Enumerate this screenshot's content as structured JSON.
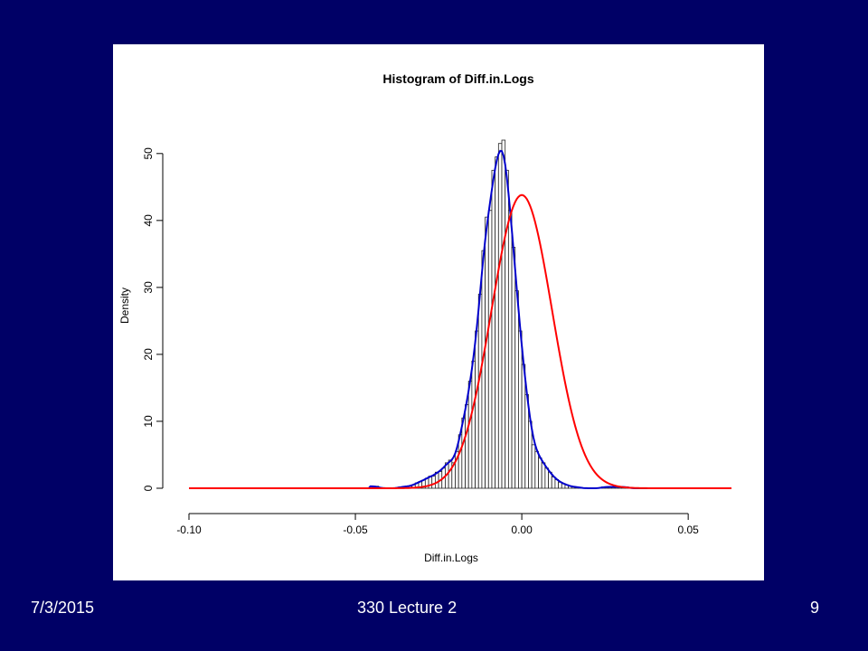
{
  "slide": {
    "background": "#000066",
    "footer_date": "7/3/2015",
    "footer_center": "330 Lecture 2",
    "footer_page": "9"
  },
  "chart_data": {
    "type": "bar",
    "title": "Histogram of Diff.in.Logs",
    "xlabel": "Diff.in.Logs",
    "ylabel": "Density",
    "xlim": [
      -0.1,
      0.063
    ],
    "ylim": [
      0,
      52
    ],
    "x_ticks": [
      -0.1,
      -0.05,
      0.0,
      0.05
    ],
    "x_tick_labels": [
      "-0.10",
      "-0.05",
      "0.00",
      "0.05"
    ],
    "y_ticks": [
      0,
      10,
      20,
      30,
      40,
      50
    ],
    "y_tick_labels": [
      "0",
      "10",
      "20",
      "30",
      "40",
      "50"
    ],
    "histogram": {
      "bin_width": 0.001,
      "bin_edges": [
        -0.045,
        -0.044,
        -0.043,
        -0.042,
        -0.041,
        -0.04,
        -0.039,
        -0.038,
        -0.037,
        -0.036,
        -0.035,
        -0.034,
        -0.033,
        -0.032,
        -0.031,
        -0.03,
        -0.029,
        -0.028,
        -0.027,
        -0.026,
        -0.025,
        -0.024,
        -0.023,
        -0.022,
        -0.021,
        -0.02,
        -0.019,
        -0.018,
        -0.017,
        -0.016,
        -0.015,
        -0.014,
        -0.013,
        -0.012,
        -0.011,
        -0.01,
        -0.009,
        -0.008,
        -0.007,
        -0.006,
        -0.005,
        -0.004,
        -0.003,
        -0.002,
        -0.001,
        0.0,
        0.001,
        0.002,
        0.003,
        0.004,
        0.005,
        0.006,
        0.007,
        0.008,
        0.009,
        0.01,
        0.011,
        0.012,
        0.013,
        0.014,
        0.015,
        0.016,
        0.017,
        0.018,
        0.019,
        0.02,
        0.021,
        0.022,
        0.023,
        0.024,
        0.025,
        0.026,
        0.027,
        0.028,
        0.029,
        0.03,
        0.031,
        0.032,
        0.033,
        0.034,
        0.035,
        0.036,
        0.037,
        0.038,
        0.039,
        0.04,
        0.041,
        0.042,
        0.043,
        0.044,
        0.045
      ],
      "density": [
        0.3,
        0.3,
        0,
        0,
        0,
        0,
        0,
        0,
        0.2,
        0.2,
        0.3,
        0.3,
        0.5,
        0.8,
        1.0,
        1.2,
        1.5,
        1.8,
        1.8,
        2.4,
        2.5,
        3.0,
        3.8,
        4.2,
        3.8,
        5.5,
        8.0,
        10.5,
        12.5,
        16.0,
        19.0,
        23.5,
        29.0,
        35.5,
        40.5,
        41.5,
        47.5,
        49.5,
        51.5,
        52.0,
        47.5,
        41.5,
        36.0,
        29.5,
        23.5,
        18.5,
        14.0,
        10.0,
        6.5,
        5.5,
        4.5,
        3.8,
        3.0,
        2.4,
        1.7,
        1.3,
        0.9,
        0.7,
        0.5,
        0.3,
        0.2,
        0.2,
        0.1,
        0,
        0,
        0,
        0,
        0,
        0,
        0.2,
        0.2,
        0.2,
        0.2,
        0.2,
        0.2,
        0.2,
        0.2,
        0,
        0,
        0,
        0,
        0,
        0,
        0,
        0,
        0,
        0,
        0,
        0,
        0
      ]
    },
    "series": [
      {
        "color": "#0000cc",
        "curve": "kernel density estimate"
      },
      {
        "color": "#ff0000",
        "curve": "normal density",
        "mean": 0.0,
        "peak": 43.8
      }
    ]
  }
}
